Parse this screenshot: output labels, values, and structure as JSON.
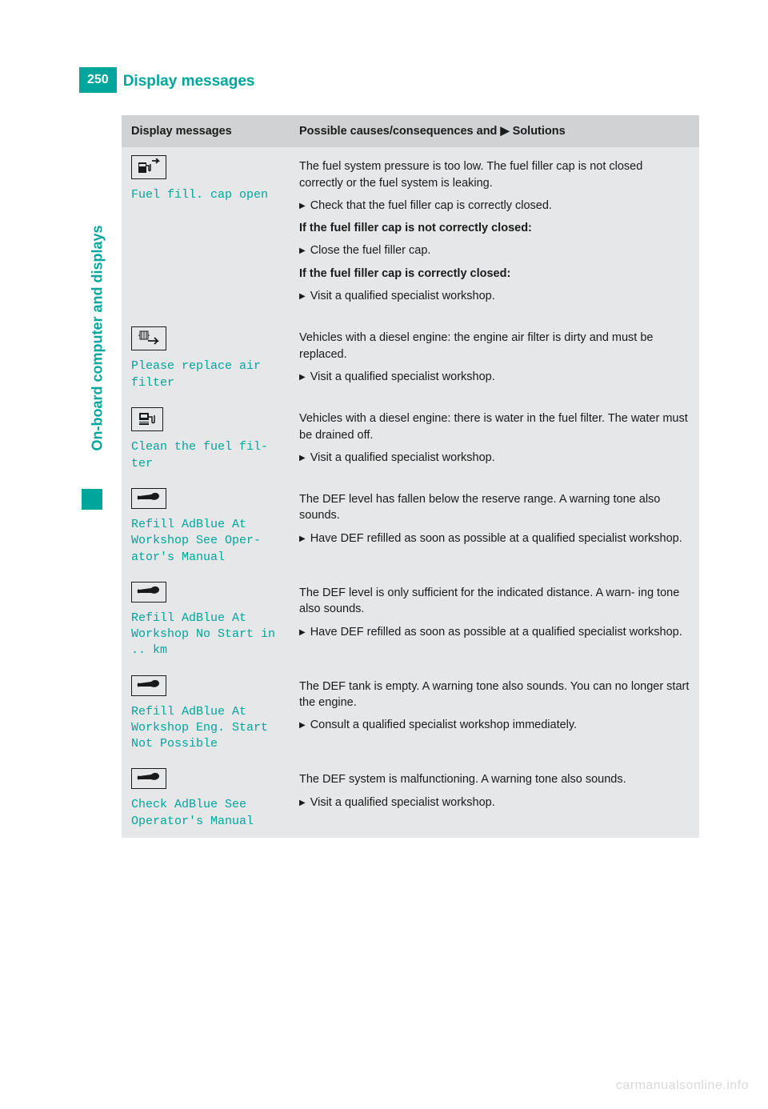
{
  "page": {
    "number": "250",
    "title": "Display messages",
    "side_tab": "On-board computer and displays",
    "watermark": "carmanualsonline.info"
  },
  "table": {
    "header": {
      "col1": "Display messages",
      "col2_pre": "Possible causes/consequences and ",
      "col2_post": " Solutions"
    },
    "rows": [
      {
        "icon": "fuel-arrow",
        "message": "Fuel fill. cap open",
        "body": [
          {
            "type": "text",
            "value": "The fuel system pressure is too low. The fuel filler cap is not closed correctly or the fuel system is leaking."
          },
          {
            "type": "action",
            "value": "Check that the fuel filler cap is correctly closed."
          },
          {
            "type": "bold",
            "value": "If the fuel filler cap is not correctly closed:"
          },
          {
            "type": "action",
            "value": "Close the fuel filler cap."
          },
          {
            "type": "bold",
            "value": "If the fuel filler cap is correctly closed:"
          },
          {
            "type": "action",
            "value": "Visit a qualified specialist workshop."
          }
        ]
      },
      {
        "icon": "air-filter",
        "message": "Please replace air filter",
        "body": [
          {
            "type": "text",
            "value": "Vehicles with a diesel engine: the engine air filter is dirty and must be replaced."
          },
          {
            "type": "action",
            "value": "Visit a qualified specialist workshop."
          }
        ]
      },
      {
        "icon": "fuel-pump",
        "message": "Clean the fuel fil‐ ter",
        "body": [
          {
            "type": "text",
            "value": "Vehicles with a diesel engine: there is water in the fuel filter. The water must be drained off."
          },
          {
            "type": "action",
            "value": "Visit a qualified specialist workshop."
          }
        ]
      },
      {
        "icon": "wrench",
        "message": "Refill AdBlue At Workshop See Oper‐ ator's Manual",
        "body": [
          {
            "type": "text",
            "value": "The DEF level has fallen below the reserve range. A warning tone also sounds."
          },
          {
            "type": "action",
            "value": "Have DEF refilled as soon as possible at a qualified specialist workshop."
          }
        ]
      },
      {
        "icon": "wrench",
        "message": "Refill AdBlue At Workshop No Start in .. km",
        "body": [
          {
            "type": "text",
            "value": "The DEF level is only sufficient for the indicated distance. A warn‐ ing tone also sounds."
          },
          {
            "type": "action",
            "value": "Have DEF refilled as soon as possible at a qualified specialist workshop."
          }
        ]
      },
      {
        "icon": "wrench",
        "message": "Refill AdBlue At Workshop Eng. Start Not Possible",
        "body": [
          {
            "type": "text",
            "value": "The DEF tank is empty. A warning tone also sounds. You can no longer start the engine."
          },
          {
            "type": "action",
            "value": "Consult a qualified specialist workshop immediately."
          }
        ]
      },
      {
        "icon": "wrench",
        "message": "Check AdBlue See Operator's Manual",
        "body": [
          {
            "type": "text",
            "value": "The DEF system is malfunctioning. A warning tone also sounds."
          },
          {
            "type": "action",
            "value": "Visit a qualified specialist workshop."
          }
        ]
      }
    ]
  }
}
